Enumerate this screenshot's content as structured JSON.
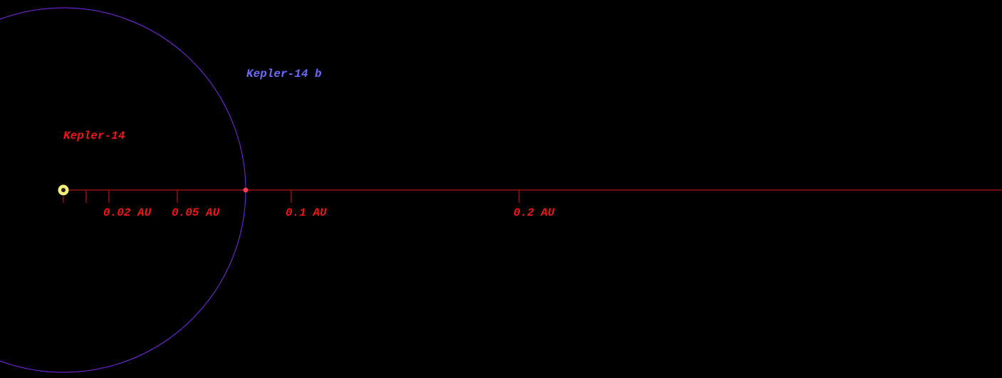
{
  "star": {
    "name": "Kepler-14"
  },
  "planet": {
    "name": "Kepler-14 b",
    "semi_major_axis": 0.08
  },
  "scale": {
    "ticks": [
      0,
      0.01,
      {
        "value": 0.02,
        "label": "0.02 AU"
      },
      {
        "value": 0.05,
        "label": "0.05 AU"
      },
      {
        "value": 0.1,
        "label": "0.1 AU"
      },
      {
        "value": 0.2,
        "label": "0.2 AU"
      }
    ]
  }
}
